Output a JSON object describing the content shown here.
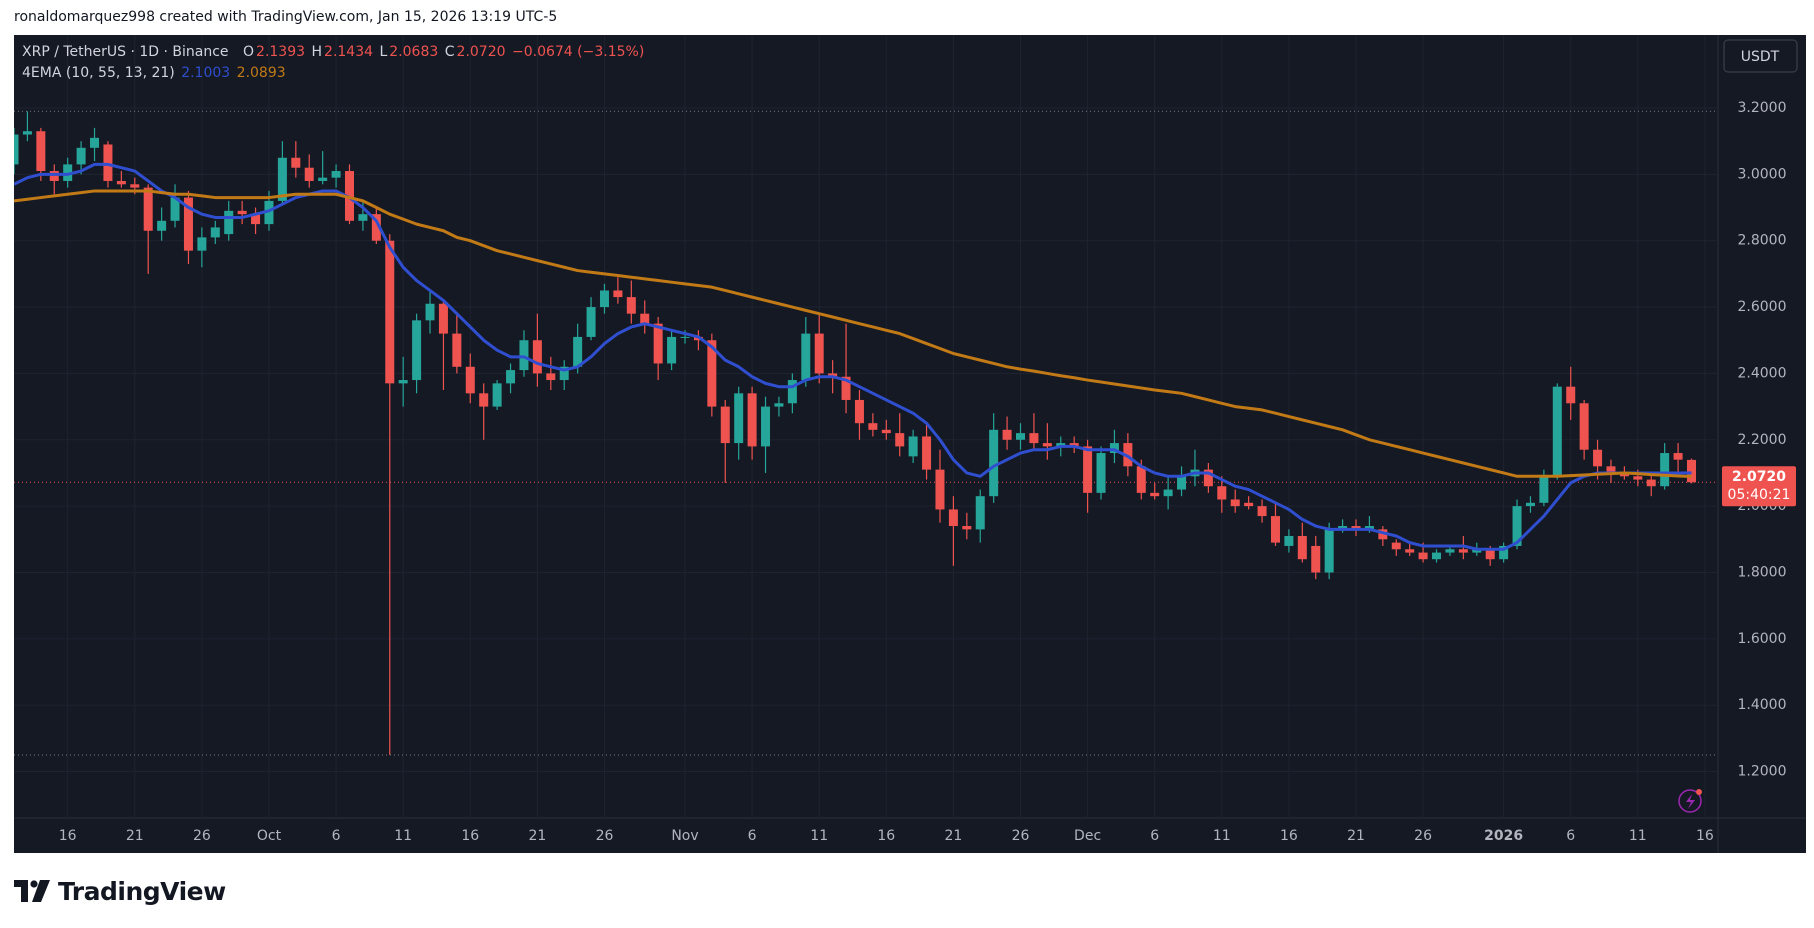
{
  "header": {
    "attribution": "ronaldomarquez998 created with TradingView.com, Jan 15, 2026 13:19 UTC-5"
  },
  "footer": {
    "logo": "TradingView"
  },
  "chart_data": {
    "type": "candlestick",
    "symbol": "XRP / TetherUS · 1D · Binance",
    "ohlc_legend": [
      {
        "label": "O",
        "value": "2.1393"
      },
      {
        "label": "H",
        "value": "2.1434"
      },
      {
        "label": "L",
        "value": "2.0683"
      },
      {
        "label": "C",
        "value": "2.0720"
      }
    ],
    "change": "−0.0674 (−3.15%)",
    "indicator": "4EMA (10, 55, 13, 21)",
    "currency": "USDT",
    "last_price_label": "2.0720",
    "countdown": "05:40:21",
    "up_color": "#26a69a",
    "down_color": "#ef5350",
    "categories": [
      null,
      null,
      null,
      null,
      "16",
      null,
      null,
      null,
      null,
      "21",
      null,
      null,
      null,
      null,
      "26",
      null,
      null,
      null,
      null,
      "Oct",
      null,
      null,
      null,
      null,
      "6",
      null,
      null,
      null,
      null,
      "11",
      null,
      null,
      null,
      null,
      "16",
      null,
      null,
      null,
      null,
      "21",
      null,
      null,
      null,
      null,
      "26",
      null,
      null,
      null,
      null,
      null,
      "Nov",
      null,
      null,
      null,
      null,
      "6",
      null,
      null,
      null,
      null,
      "11",
      null,
      null,
      null,
      null,
      "16",
      null,
      null,
      null,
      null,
      "21",
      null,
      null,
      null,
      null,
      "26",
      null,
      null,
      null,
      null,
      "Dec",
      null,
      null,
      null,
      null,
      "6",
      null,
      null,
      null,
      null,
      "11",
      null,
      null,
      null,
      null,
      "16",
      null,
      null,
      null,
      null,
      "21",
      null,
      null,
      null,
      null,
      "26",
      null,
      null,
      null,
      null,
      null,
      "2026",
      null,
      null,
      null,
      null,
      "6",
      null,
      null,
      null,
      null,
      "11",
      null,
      null,
      null,
      null,
      "16"
    ],
    "open": [
      3.03,
      3.12,
      3.13,
      3.01,
      2.98,
      3.03,
      3.08,
      3.09,
      2.98,
      2.97,
      2.96,
      2.83,
      2.86,
      2.93,
      2.77,
      2.81,
      2.82,
      2.89,
      2.88,
      2.85,
      2.92,
      3.05,
      3.02,
      2.98,
      2.99,
      3.01,
      2.86,
      2.88,
      2.8,
      2.37,
      2.38,
      2.56,
      2.61,
      2.52,
      2.42,
      2.34,
      2.3,
      2.37,
      2.41,
      2.5,
      2.4,
      2.38,
      2.42,
      2.51,
      2.6,
      2.65,
      2.63,
      2.58,
      2.55,
      2.43,
      2.51,
      2.51,
      2.5,
      2.3,
      2.19,
      2.34,
      2.18,
      2.3,
      2.31,
      2.38,
      2.52,
      2.4,
      2.39,
      2.32,
      2.25,
      2.23,
      2.22,
      2.15,
      2.21,
      2.11,
      1.99,
      1.94,
      1.93,
      2.03,
      2.23,
      2.2,
      2.22,
      2.19,
      2.18,
      2.19,
      2.18,
      2.04,
      2.16,
      2.19,
      2.12,
      2.04,
      2.03,
      2.05,
      2.09,
      2.11,
      2.06,
      2.02,
      2.01,
      2.0,
      1.97,
      1.88,
      1.91,
      1.88,
      1.8,
      1.93,
      1.94,
      1.93,
      1.93,
      1.89,
      1.87,
      1.86,
      1.84,
      1.86,
      1.87,
      1.86,
      1.87,
      1.84,
      1.88,
      2.0,
      2.01,
      2.09,
      2.36,
      2.31,
      2.17,
      2.12,
      2.1,
      2.09,
      2.08,
      2.06,
      2.16,
      2.1393,
      null
    ],
    "high": [
      3.14,
      3.19,
      3.14,
      3.03,
      3.05,
      3.1,
      3.14,
      3.1,
      3.01,
      2.99,
      2.97,
      2.9,
      2.97,
      2.95,
      2.84,
      2.86,
      2.92,
      2.92,
      2.9,
      2.95,
      3.1,
      3.1,
      3.06,
      3.07,
      3.03,
      3.03,
      2.92,
      2.9,
      2.82,
      2.45,
      2.58,
      2.65,
      2.62,
      2.58,
      2.46,
      2.37,
      2.38,
      2.43,
      2.53,
      2.58,
      2.45,
      2.44,
      2.55,
      2.63,
      2.67,
      2.69,
      2.68,
      2.62,
      2.57,
      2.53,
      2.53,
      2.53,
      2.52,
      2.32,
      2.36,
      2.36,
      2.33,
      2.33,
      2.4,
      2.57,
      2.58,
      2.44,
      2.55,
      2.35,
      2.28,
      2.26,
      2.28,
      2.23,
      2.25,
      2.17,
      2.03,
      1.98,
      2.05,
      2.28,
      2.27,
      2.25,
      2.28,
      2.25,
      2.21,
      2.21,
      2.2,
      2.18,
      2.23,
      2.22,
      2.14,
      2.07,
      2.09,
      2.12,
      2.17,
      2.13,
      2.09,
      2.05,
      2.03,
      2.02,
      2.01,
      1.93,
      1.95,
      1.91,
      1.95,
      1.96,
      1.96,
      1.97,
      1.94,
      1.9,
      1.89,
      1.89,
      1.87,
      1.88,
      1.91,
      1.89,
      1.88,
      1.89,
      2.02,
      2.03,
      2.11,
      2.37,
      2.42,
      2.32,
      2.2,
      2.14,
      2.12,
      2.11,
      2.1,
      2.19,
      2.19,
      2.1434,
      null
    ],
    "low": [
      3.0,
      3.1,
      2.98,
      2.94,
      2.96,
      3.0,
      3.04,
      2.96,
      2.96,
      2.94,
      2.7,
      2.8,
      2.84,
      2.73,
      2.72,
      2.79,
      2.8,
      2.85,
      2.82,
      2.83,
      2.91,
      2.99,
      2.96,
      2.97,
      2.96,
      2.85,
      2.83,
      2.79,
      1.25,
      2.3,
      2.34,
      2.52,
      2.35,
      2.4,
      2.31,
      2.2,
      2.29,
      2.34,
      2.39,
      2.36,
      2.35,
      2.35,
      2.4,
      2.5,
      2.58,
      2.61,
      2.55,
      2.52,
      2.38,
      2.41,
      2.49,
      2.47,
      2.27,
      2.07,
      2.14,
      2.14,
      2.1,
      2.27,
      2.28,
      2.36,
      2.37,
      2.34,
      2.28,
      2.2,
      2.21,
      2.2,
      2.15,
      2.13,
      2.08,
      1.95,
      1.82,
      1.9,
      1.89,
      2.01,
      2.17,
      2.17,
      2.17,
      2.14,
      2.15,
      2.16,
      1.98,
      2.02,
      2.13,
      2.09,
      2.02,
      2.02,
      1.99,
      2.03,
      2.06,
      2.04,
      1.98,
      1.98,
      1.99,
      1.95,
      1.88,
      1.86,
      1.83,
      1.78,
      1.78,
      1.92,
      1.91,
      1.92,
      1.88,
      1.85,
      1.85,
      1.83,
      1.83,
      1.85,
      1.84,
      1.85,
      1.82,
      1.83,
      1.87,
      1.98,
      2.0,
      2.08,
      2.26,
      2.14,
      2.08,
      2.07,
      2.08,
      2.06,
      2.03,
      2.05,
      2.1,
      2.0683,
      null
    ],
    "close": [
      3.12,
      3.13,
      3.01,
      2.98,
      3.03,
      3.08,
      3.11,
      2.98,
      2.97,
      2.96,
      2.83,
      2.86,
      2.93,
      2.77,
      2.81,
      2.84,
      2.89,
      2.88,
      2.85,
      2.92,
      3.05,
      3.02,
      2.98,
      2.99,
      3.01,
      2.86,
      2.88,
      2.8,
      2.37,
      2.38,
      2.56,
      2.61,
      2.52,
      2.42,
      2.34,
      2.3,
      2.37,
      2.41,
      2.5,
      2.4,
      2.38,
      2.42,
      2.51,
      2.6,
      2.65,
      2.63,
      2.58,
      2.55,
      2.43,
      2.51,
      2.51,
      2.5,
      2.3,
      2.19,
      2.34,
      2.18,
      2.3,
      2.31,
      2.38,
      2.52,
      2.4,
      2.39,
      2.32,
      2.25,
      2.23,
      2.22,
      2.18,
      2.21,
      2.11,
      1.99,
      1.94,
      1.93,
      2.03,
      2.23,
      2.2,
      2.22,
      2.19,
      2.18,
      2.19,
      2.18,
      2.04,
      2.16,
      2.19,
      2.12,
      2.04,
      2.03,
      2.05,
      2.09,
      2.11,
      2.06,
      2.02,
      2.0,
      2.0,
      1.97,
      1.89,
      1.91,
      1.84,
      1.8,
      1.93,
      1.94,
      1.93,
      1.94,
      1.9,
      1.87,
      1.86,
      1.84,
      1.86,
      1.87,
      1.86,
      1.87,
      1.84,
      1.88,
      2.0,
      2.01,
      2.09,
      2.36,
      2.31,
      2.17,
      2.12,
      2.1,
      2.09,
      2.08,
      2.06,
      2.16,
      2.14,
      2.072,
      null
    ],
    "series": [
      {
        "color": "#2f4fd0",
        "values": [
          2.97,
          2.99,
          3.0,
          3.0,
          3.0,
          3.01,
          3.03,
          3.03,
          3.02,
          3.01,
          2.98,
          2.95,
          2.93,
          2.9,
          2.88,
          2.87,
          2.87,
          2.87,
          2.88,
          2.89,
          2.91,
          2.93,
          2.94,
          2.95,
          2.95,
          2.93,
          2.9,
          2.86,
          2.78,
          2.72,
          2.68,
          2.65,
          2.62,
          2.58,
          2.54,
          2.5,
          2.47,
          2.45,
          2.45,
          2.43,
          2.42,
          2.41,
          2.42,
          2.45,
          2.49,
          2.52,
          2.54,
          2.55,
          2.54,
          2.53,
          2.52,
          2.51,
          2.48,
          2.44,
          2.42,
          2.39,
          2.37,
          2.36,
          2.36,
          2.38,
          2.39,
          2.39,
          2.38,
          2.36,
          2.34,
          2.32,
          2.3,
          2.28,
          2.25,
          2.2,
          2.14,
          2.1,
          2.09,
          2.12,
          2.14,
          2.16,
          2.17,
          2.17,
          2.18,
          2.18,
          2.17,
          2.17,
          2.17,
          2.15,
          2.12,
          2.1,
          2.09,
          2.09,
          2.1,
          2.1,
          2.08,
          2.06,
          2.05,
          2.03,
          2.01,
          1.99,
          1.96,
          1.94,
          1.93,
          1.93,
          1.93,
          1.93,
          1.92,
          1.91,
          1.89,
          1.88,
          1.88,
          1.88,
          1.88,
          1.87,
          1.87,
          1.87,
          1.89,
          1.93,
          1.97,
          2.02,
          2.07,
          2.09,
          2.1,
          2.1,
          2.1,
          2.1,
          2.1,
          2.1,
          2.1,
          2.1003,
          null
        ]
      },
      {
        "color": "#c27a16",
        "values": [
          2.92,
          2.925,
          2.93,
          2.935,
          2.94,
          2.945,
          2.95,
          2.95,
          2.95,
          2.95,
          2.95,
          2.945,
          2.94,
          2.94,
          2.935,
          2.93,
          2.93,
          2.93,
          2.93,
          2.93,
          2.935,
          2.94,
          2.94,
          2.94,
          2.94,
          2.93,
          2.92,
          2.9,
          2.88,
          2.865,
          2.85,
          2.84,
          2.83,
          2.81,
          2.8,
          2.785,
          2.77,
          2.76,
          2.75,
          2.74,
          2.73,
          2.72,
          2.71,
          2.705,
          2.7,
          2.695,
          2.69,
          2.685,
          2.68,
          2.675,
          2.67,
          2.665,
          2.66,
          2.65,
          2.64,
          2.63,
          2.62,
          2.61,
          2.6,
          2.59,
          2.58,
          2.57,
          2.56,
          2.55,
          2.54,
          2.53,
          2.52,
          2.505,
          2.49,
          2.475,
          2.46,
          2.45,
          2.44,
          2.43,
          2.42,
          2.413,
          2.407,
          2.4,
          2.393,
          2.387,
          2.38,
          2.374,
          2.368,
          2.362,
          2.356,
          2.35,
          2.345,
          2.34,
          2.33,
          2.32,
          2.31,
          2.3,
          2.295,
          2.29,
          2.28,
          2.27,
          2.26,
          2.25,
          2.24,
          2.23,
          2.215,
          2.2,
          2.19,
          2.18,
          2.17,
          2.16,
          2.15,
          2.14,
          2.13,
          2.12,
          2.11,
          2.1,
          2.09,
          2.09,
          2.09,
          2.09,
          2.092,
          2.094,
          2.096,
          2.098,
          2.1,
          2.098,
          2.095,
          2.093,
          2.091,
          2.0893,
          null
        ]
      }
    ],
    "ylim": [
      1.06,
      3.42
    ],
    "yticks": [
      {
        "value": 1.2,
        "label": "1.2000"
      },
      {
        "value": 1.4,
        "label": "1.4000"
      },
      {
        "value": 1.6,
        "label": "1.6000"
      },
      {
        "value": 1.8,
        "label": "1.8000"
      },
      {
        "value": 2.0,
        "label": "2.0000"
      },
      {
        "value": 2.2,
        "label": "2.2000"
      },
      {
        "value": 2.4,
        "label": "2.4000"
      },
      {
        "value": 2.6,
        "label": "2.6000"
      },
      {
        "value": 2.8,
        "label": "2.8000"
      },
      {
        "value": 3.0,
        "label": "3.0000"
      },
      {
        "value": 3.2,
        "label": "3.2000"
      }
    ],
    "grid": true
  }
}
